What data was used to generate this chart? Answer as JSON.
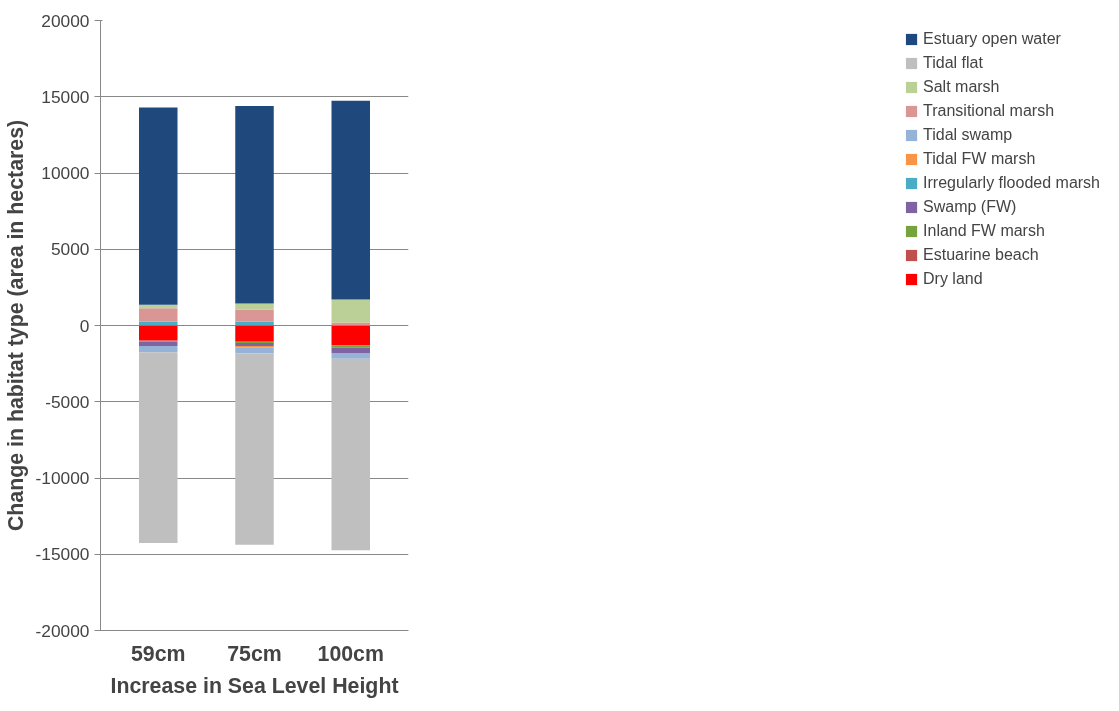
{
  "chart_data": {
    "type": "bar",
    "stacked": true,
    "xlabel": "Increase in Sea Level Height",
    "ylabel": "Change in habitat type (area in hectares)",
    "categories": [
      "59cm",
      "75cm",
      "100cm"
    ],
    "series": [
      {
        "name": "Dry land",
        "color": "#ff0000",
        "values": [
          -980,
          -1070,
          -1300
        ]
      },
      {
        "name": "Estuarine beach",
        "color": "#c0504d",
        "values": [
          -30,
          null,
          -30
        ]
      },
      {
        "name": "Inland FW marsh",
        "color": "#77a33c",
        "values": [
          -50,
          -80,
          -110
        ]
      },
      {
        "name": "Swamp (FW)",
        "color": "#8064a2",
        "values": [
          -280,
          -200,
          -370
        ]
      },
      {
        "name": "Irregularly flooded marsh",
        "color": "#4bacc6",
        "values": [
          250,
          250,
          0
        ]
      },
      {
        "name": "Tidal FW marsh",
        "color": "#f79646",
        "values": [
          0,
          -110,
          0
        ]
      },
      {
        "name": "Tidal swamp",
        "color": "#95b3d7",
        "values": [
          -420,
          -370,
          -370
        ]
      },
      {
        "name": "Transitional marsh",
        "color": "#d99694",
        "values": [
          880,
          800,
          200
        ]
      },
      {
        "name": "Salt marsh",
        "color": "#bbd096",
        "values": [
          230,
          390,
          1500
        ]
      },
      {
        "name": "Tidal flat",
        "color": "#bfbfbf",
        "values": [
          -12500,
          -12540,
          -12560
        ]
      },
      {
        "name": "Estuary open water",
        "color": "#1f497d",
        "values": [
          12940,
          12950,
          13030
        ]
      }
    ],
    "ylim": [
      -20000,
      20000
    ],
    "yticks": [
      -20000,
      -15000,
      -10000,
      -5000,
      0,
      5000,
      10000,
      15000,
      20000
    ],
    "grid": "y",
    "legend": "right"
  }
}
